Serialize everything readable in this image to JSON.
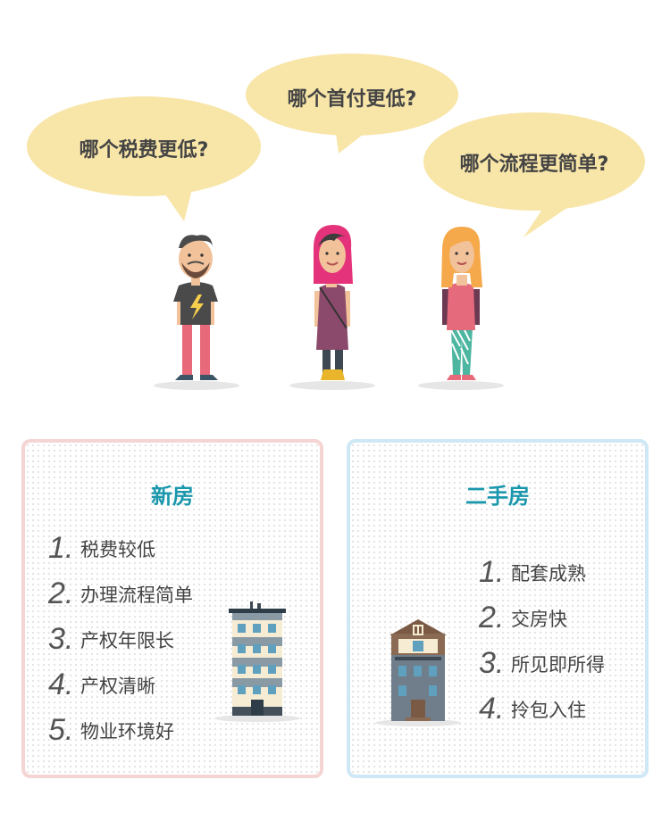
{
  "bubbles": {
    "left": "哪个税费更低?",
    "middle": "哪个首付更低?",
    "right": "哪个流程更简单?"
  },
  "colors": {
    "bubble": "#f8e5a8",
    "new_border": "#f5d4d4",
    "old_border": "#cfe8f5",
    "title": "#1a97ac"
  },
  "new_house": {
    "title": "新房",
    "items": [
      {
        "num": "1.",
        "text": "税费较低"
      },
      {
        "num": "2.",
        "text": "办理流程简单"
      },
      {
        "num": "3.",
        "text": "产权年限长"
      },
      {
        "num": "4.",
        "text": "产权清晰"
      },
      {
        "num": "5.",
        "text": "物业环境好"
      }
    ]
  },
  "second_hand": {
    "title": "二手房",
    "items": [
      {
        "num": "1.",
        "text": "配套成熟"
      },
      {
        "num": "2.",
        "text": "交房快"
      },
      {
        "num": "3.",
        "text": "所见即所得"
      },
      {
        "num": "4.",
        "text": "拎包入住"
      }
    ]
  }
}
